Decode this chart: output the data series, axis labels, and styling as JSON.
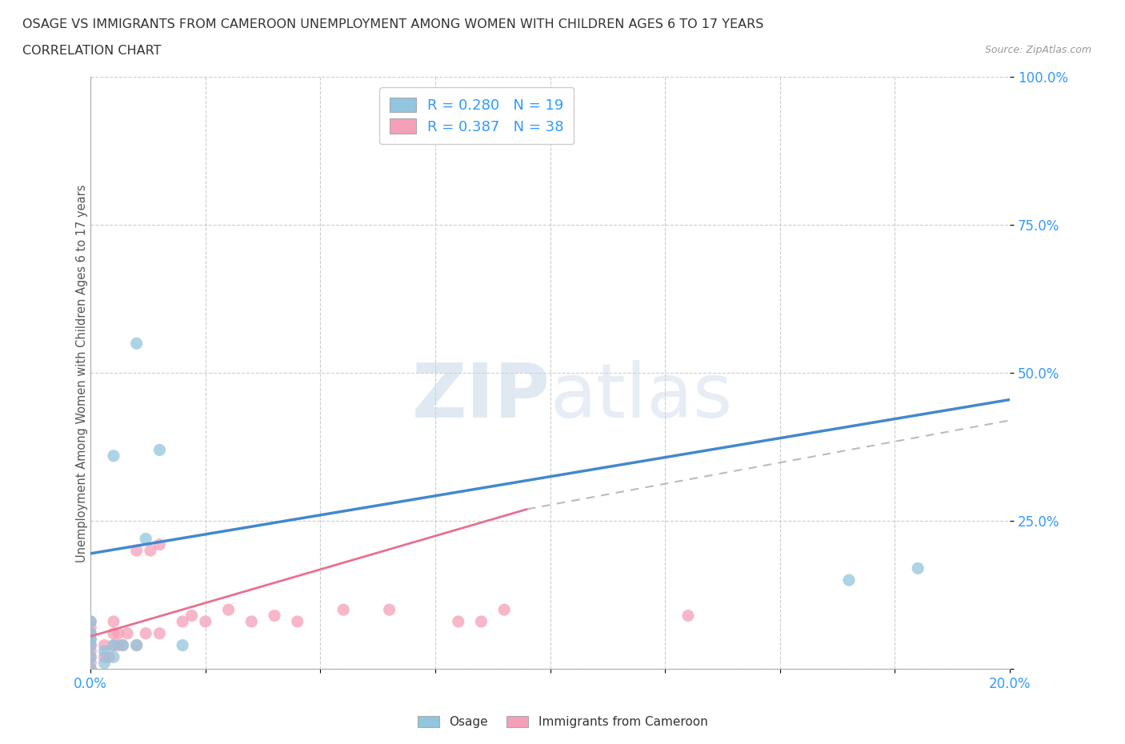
{
  "title_line1": "OSAGE VS IMMIGRANTS FROM CAMEROON UNEMPLOYMENT AMONG WOMEN WITH CHILDREN AGES 6 TO 17 YEARS",
  "title_line2": "CORRELATION CHART",
  "source": "Source: ZipAtlas.com",
  "ylabel": "Unemployment Among Women with Children Ages 6 to 17 years",
  "xlim": [
    0.0,
    0.2
  ],
  "ylim": [
    0.0,
    1.0
  ],
  "xticks": [
    0.0,
    0.025,
    0.05,
    0.075,
    0.1,
    0.125,
    0.15,
    0.175,
    0.2
  ],
  "xtick_labels": [
    "0.0%",
    "",
    "",
    "",
    "",
    "",
    "",
    "",
    "20.0%"
  ],
  "yticks": [
    0.0,
    0.25,
    0.5,
    0.75,
    1.0
  ],
  "ytick_labels": [
    "",
    "25.0%",
    "50.0%",
    "75.0%",
    "100.0%"
  ],
  "watermark_zip": "ZIP",
  "watermark_atlas": "atlas",
  "legend_r1": "R = 0.280",
  "legend_n1": "N = 19",
  "legend_r2": "R = 0.387",
  "legend_n2": "N = 38",
  "color_osage": "#92C5DE",
  "color_cameroon": "#F4A0B8",
  "color_line_osage": "#4488CC",
  "color_line_cameroon": "#E87090",
  "color_line_cameroon_dashed": "#BBBBBB",
  "background_color": "#FFFFFF",
  "grid_color": "#CCCCCC",
  "osage_x": [
    0.0,
    0.0,
    0.0,
    0.0,
    0.0,
    0.0,
    0.003,
    0.003,
    0.005,
    0.005,
    0.005,
    0.007,
    0.01,
    0.01,
    0.012,
    0.015,
    0.02,
    0.165,
    0.18
  ],
  "osage_y": [
    0.0,
    0.02,
    0.04,
    0.05,
    0.06,
    0.08,
    0.01,
    0.03,
    0.02,
    0.04,
    0.36,
    0.04,
    0.04,
    0.55,
    0.22,
    0.37,
    0.04,
    0.15,
    0.17
  ],
  "cameroon_x": [
    0.0,
    0.0,
    0.0,
    0.0,
    0.0,
    0.0,
    0.0,
    0.0,
    0.0,
    0.003,
    0.003,
    0.004,
    0.005,
    0.005,
    0.005,
    0.006,
    0.006,
    0.007,
    0.008,
    0.01,
    0.01,
    0.012,
    0.013,
    0.015,
    0.015,
    0.02,
    0.022,
    0.025,
    0.03,
    0.035,
    0.04,
    0.045,
    0.055,
    0.065,
    0.08,
    0.085,
    0.09,
    0.13
  ],
  "cameroon_y": [
    0.0,
    0.01,
    0.02,
    0.03,
    0.04,
    0.05,
    0.06,
    0.07,
    0.08,
    0.02,
    0.04,
    0.02,
    0.04,
    0.06,
    0.08,
    0.04,
    0.06,
    0.04,
    0.06,
    0.04,
    0.2,
    0.06,
    0.2,
    0.06,
    0.21,
    0.08,
    0.09,
    0.08,
    0.1,
    0.08,
    0.09,
    0.08,
    0.1,
    0.1,
    0.08,
    0.08,
    0.1,
    0.09
  ],
  "line_osage_x0": 0.0,
  "line_osage_y0": 0.195,
  "line_osage_x1": 0.2,
  "line_osage_y1": 0.455,
  "line_cam_solid_x0": 0.0,
  "line_cam_solid_y0": 0.055,
  "line_cam_solid_x1": 0.095,
  "line_cam_solid_y1": 0.27,
  "line_cam_dashed_x0": 0.095,
  "line_cam_dashed_y0": 0.27,
  "line_cam_dashed_x1": 0.2,
  "line_cam_dashed_y1": 0.42
}
